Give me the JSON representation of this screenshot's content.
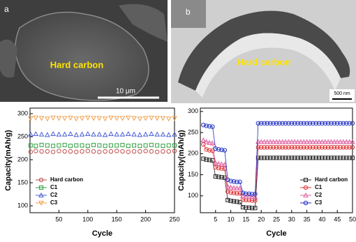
{
  "figure": {
    "panels": [
      {
        "label": "a",
        "caption": "Hard carbon",
        "scale_bar": "10 μm"
      },
      {
        "label": "b",
        "caption": "Hard carbon",
        "scale_bar": "500 nm"
      }
    ]
  },
  "chart_data": [
    {
      "type": "line",
      "lines": false,
      "xlabel": "Cycle",
      "ylabel": "Capacity(mAh/g)",
      "legend": "lower-left",
      "xlim": [
        0,
        250
      ],
      "ylim": [
        85,
        312
      ],
      "xticks": [
        50,
        100,
        150,
        200,
        250
      ],
      "yticks": [
        100,
        150,
        200,
        250,
        300
      ],
      "x": [
        1,
        10,
        20,
        30,
        40,
        50,
        60,
        70,
        80,
        90,
        100,
        110,
        120,
        130,
        140,
        150,
        160,
        170,
        180,
        190,
        200,
        210,
        220,
        230,
        240,
        250
      ],
      "series": [
        {
          "name": "Hard carbon",
          "color": "#c0504d",
          "marker": "circle",
          "values": [
            217,
            219,
            218,
            218,
            217,
            219,
            218,
            218,
            217,
            218,
            219,
            218,
            217,
            218,
            218,
            219,
            218,
            217,
            218,
            218,
            219,
            218,
            217,
            218,
            218,
            219
          ]
        },
        {
          "name": "C1",
          "color": "#2e9e3e",
          "marker": "square",
          "values": [
            231,
            230,
            232,
            231,
            230,
            231,
            232,
            230,
            231,
            231,
            230,
            232,
            231,
            230,
            231,
            231,
            232,
            230,
            231,
            230,
            231,
            232,
            231,
            230,
            231,
            231
          ]
        },
        {
          "name": "C2",
          "color": "#4a5fd8",
          "marker": "triangle",
          "values": [
            255,
            256,
            255,
            254,
            256,
            255,
            255,
            256,
            254,
            255,
            256,
            255,
            255,
            254,
            256,
            255,
            255,
            256,
            255,
            254,
            255,
            256,
            255,
            255,
            254,
            255
          ]
        },
        {
          "name": "C3",
          "color": "#f0a050",
          "marker": "triangle-down",
          "values": [
            290,
            291,
            290,
            289,
            291,
            290,
            290,
            291,
            289,
            290,
            291,
            290,
            290,
            289,
            291,
            290,
            290,
            291,
            290,
            289,
            290,
            291,
            290,
            290,
            289,
            290
          ]
        }
      ]
    },
    {
      "type": "line",
      "lines": true,
      "xlabel": "Cycle",
      "ylabel": "Capacity(mAh/g)",
      "legend": "lower-right",
      "xlim": [
        0,
        50
      ],
      "ylim": [
        60,
        308
      ],
      "xticks": [
        5,
        10,
        15,
        20,
        25,
        30,
        35,
        40,
        45,
        50
      ],
      "yticks": [
        100,
        150,
        200,
        250,
        300
      ],
      "x": [
        1,
        2,
        3,
        4,
        5,
        6,
        7,
        8,
        9,
        10,
        11,
        12,
        13,
        14,
        15,
        16,
        17,
        18,
        19,
        20,
        21,
        22,
        23,
        24,
        25,
        26,
        27,
        28,
        29,
        30,
        31,
        32,
        33,
        34,
        35,
        36,
        37,
        38,
        39,
        40,
        41,
        42,
        43,
        44,
        45,
        46,
        47,
        48,
        49,
        50
      ],
      "series": [
        {
          "name": "Hard carbon",
          "color": "#222222",
          "marker": "square",
          "values": [
            188,
            186,
            185,
            184,
            146,
            145,
            144,
            143,
            90,
            88,
            87,
            86,
            85,
            73,
            72,
            72,
            71,
            71,
            190,
            190,
            190,
            190,
            190,
            190,
            190,
            190,
            190,
            190,
            190,
            190,
            190,
            190,
            190,
            190,
            190,
            190,
            190,
            190,
            190,
            190,
            190,
            190,
            190,
            190,
            190,
            190,
            190,
            190,
            190,
            190
          ]
        },
        {
          "name": "C1",
          "color": "#e03030",
          "marker": "circle",
          "values": [
            222,
            210,
            208,
            207,
            168,
            166,
            165,
            164,
            110,
            108,
            107,
            106,
            106,
            91,
            90,
            90,
            89,
            89,
            215,
            215,
            215,
            215,
            215,
            215,
            215,
            215,
            215,
            215,
            215,
            215,
            215,
            215,
            215,
            215,
            215,
            215,
            215,
            215,
            215,
            215,
            215,
            215,
            215,
            215,
            215,
            215,
            215,
            215,
            215,
            215
          ]
        },
        {
          "name": "C2",
          "color": "#e060a0",
          "marker": "triangle",
          "values": [
            232,
            228,
            226,
            225,
            178,
            176,
            175,
            174,
            122,
            120,
            119,
            118,
            118,
            100,
            98,
            98,
            97,
            97,
            228,
            228,
            228,
            228,
            228,
            228,
            228,
            228,
            228,
            228,
            228,
            228,
            228,
            228,
            228,
            228,
            228,
            228,
            228,
            228,
            228,
            228,
            228,
            228,
            228,
            228,
            228,
            228,
            228,
            228,
            228,
            228
          ]
        },
        {
          "name": "C3",
          "color": "#2030c0",
          "marker": "circle",
          "values": [
            268,
            266,
            265,
            264,
            212,
            210,
            209,
            208,
            138,
            135,
            134,
            133,
            133,
            107,
            105,
            105,
            104,
            104,
            272,
            272,
            272,
            272,
            272,
            272,
            272,
            272,
            272,
            272,
            272,
            272,
            272,
            272,
            272,
            272,
            272,
            272,
            272,
            272,
            272,
            272,
            272,
            272,
            272,
            272,
            272,
            272,
            272,
            272,
            272,
            272
          ]
        }
      ]
    }
  ]
}
